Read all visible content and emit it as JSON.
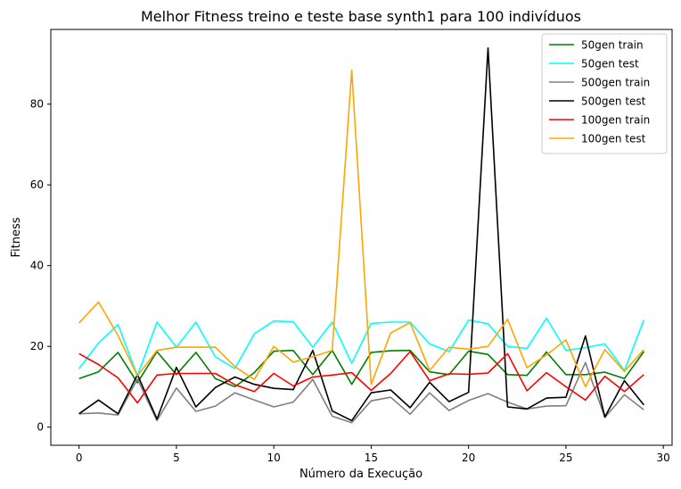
{
  "chart_data": {
    "type": "line",
    "title": "Melhor Fitness treino e teste base synth1 para 100 indivíduos",
    "xlabel": "Número da Execução",
    "ylabel": "Fitness",
    "xlim": [
      -1.45,
      30.45
    ],
    "ylim": [
      -4.5,
      98.5
    ],
    "xticks": [
      0,
      5,
      10,
      15,
      20,
      25,
      30
    ],
    "yticks": [
      0,
      20,
      40,
      60,
      80
    ],
    "grid": false,
    "legend_position": "top-right",
    "x": [
      0,
      1,
      2,
      3,
      4,
      5,
      6,
      7,
      8,
      9,
      10,
      11,
      12,
      13,
      14,
      15,
      16,
      17,
      18,
      19,
      20,
      21,
      22,
      23,
      24,
      25,
      26,
      27,
      28,
      29
    ],
    "series": [
      {
        "name": "50gen train",
        "color": "#008000",
        "values": [
          12.0,
          13.7,
          18.5,
          11.0,
          18.7,
          13.0,
          18.5,
          12.0,
          10.0,
          13.5,
          18.8,
          19.0,
          13.0,
          19.0,
          10.6,
          18.5,
          18.9,
          19.0,
          13.7,
          13.0,
          18.8,
          18.0,
          13.0,
          12.8,
          18.6,
          13.0,
          13.0,
          13.6,
          12.0,
          18.7
        ]
      },
      {
        "name": "50gen test",
        "color": "#00ffff",
        "values": [
          14.5,
          20.8,
          25.4,
          12.7,
          26.0,
          19.8,
          26.0,
          17.4,
          14.5,
          23.1,
          26.3,
          26.1,
          19.8,
          26.0,
          15.8,
          25.7,
          26.0,
          26.0,
          20.6,
          18.7,
          26.5,
          25.6,
          20.0,
          19.5,
          27.0,
          19.0,
          19.7,
          20.6,
          14.0,
          26.5
        ]
      },
      {
        "name": "500gen train",
        "color": "#808080",
        "values": [
          3.3,
          3.5,
          3.0,
          11.9,
          1.6,
          9.7,
          3.9,
          5.2,
          8.5,
          6.7,
          5.0,
          6.2,
          11.8,
          2.7,
          1.1,
          6.5,
          7.4,
          3.2,
          8.5,
          4.1,
          6.6,
          8.3,
          6.2,
          4.5,
          5.2,
          5.3,
          16.0,
          2.4,
          8.0,
          4.3
        ]
      },
      {
        "name": "500gen test",
        "color": "#000000",
        "values": [
          3.3,
          6.7,
          3.3,
          13.0,
          2.0,
          14.8,
          5.0,
          9.8,
          12.4,
          10.6,
          9.6,
          9.3,
          19.0,
          4.0,
          1.6,
          8.5,
          9.2,
          4.8,
          11.1,
          6.3,
          8.6,
          93.9,
          5.0,
          4.5,
          7.2,
          7.4,
          22.6,
          2.5,
          11.5,
          5.5
        ]
      },
      {
        "name": "100gen train",
        "color": "#ff0000",
        "values": [
          18.2,
          15.5,
          12.2,
          6.0,
          12.9,
          13.3,
          13.3,
          13.3,
          10.5,
          8.8,
          13.3,
          10.2,
          12.4,
          12.9,
          13.5,
          9.1,
          13.3,
          18.7,
          11.5,
          13.2,
          13.1,
          13.4,
          18.2,
          9.0,
          13.5,
          10.0,
          6.7,
          12.6,
          8.8,
          13.0
        ]
      },
      {
        "name": "100gen test",
        "color": "#ffa500",
        "values": [
          25.8,
          31.0,
          22.7,
          12.7,
          19.0,
          19.8,
          19.8,
          19.8,
          15.0,
          11.8,
          20.0,
          16.1,
          17.4,
          19.0,
          88.4,
          10.6,
          23.3,
          25.9,
          14.0,
          19.8,
          19.3,
          20.0,
          26.7,
          14.7,
          17.9,
          21.6,
          10.0,
          19.2,
          13.8,
          19.2
        ]
      }
    ]
  }
}
